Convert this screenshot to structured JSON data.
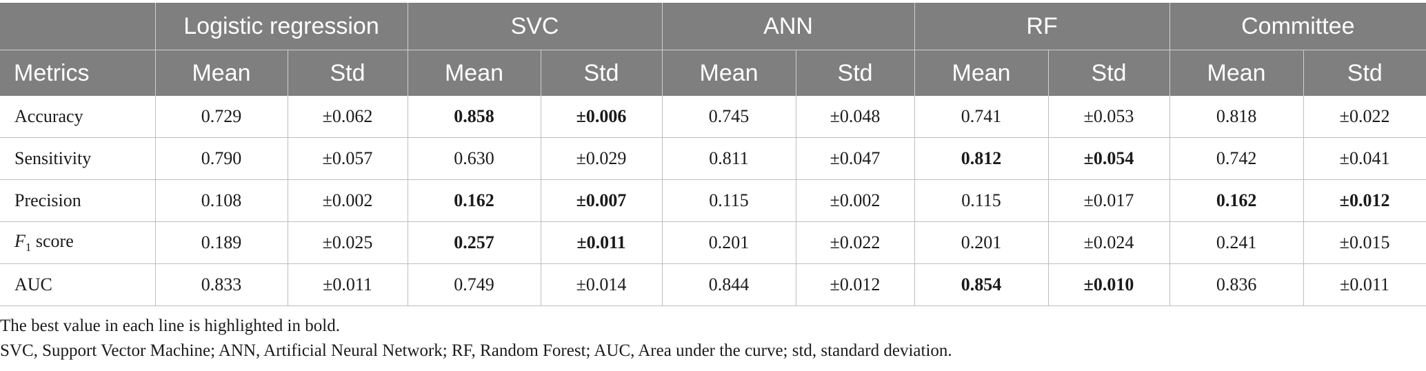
{
  "table": {
    "groups": [
      "Logistic regression",
      "SVC",
      "ANN",
      "RF",
      "Committee"
    ],
    "metrics_header": "Metrics",
    "mean_label": "Mean",
    "std_label": "Std",
    "rows": [
      {
        "label": "Accuracy",
        "cells": [
          {
            "v": "0.729",
            "bold": false
          },
          {
            "v": "±0.062",
            "bold": false
          },
          {
            "v": "0.858",
            "bold": true
          },
          {
            "v": "±0.006",
            "bold": true
          },
          {
            "v": "0.745",
            "bold": false
          },
          {
            "v": "±0.048",
            "bold": false
          },
          {
            "v": "0.741",
            "bold": false
          },
          {
            "v": "±0.053",
            "bold": false
          },
          {
            "v": "0.818",
            "bold": false
          },
          {
            "v": "±0.022",
            "bold": false
          }
        ]
      },
      {
        "label": "Sensitivity",
        "cells": [
          {
            "v": "0.790",
            "bold": false
          },
          {
            "v": "±0.057",
            "bold": false
          },
          {
            "v": "0.630",
            "bold": false
          },
          {
            "v": "±0.029",
            "bold": false
          },
          {
            "v": "0.811",
            "bold": false
          },
          {
            "v": "±0.047",
            "bold": false
          },
          {
            "v": "0.812",
            "bold": true
          },
          {
            "v": "±0.054",
            "bold": true
          },
          {
            "v": "0.742",
            "bold": false
          },
          {
            "v": "±0.041",
            "bold": false
          }
        ]
      },
      {
        "label": "Precision",
        "cells": [
          {
            "v": "0.108",
            "bold": false
          },
          {
            "v": "±0.002",
            "bold": false
          },
          {
            "v": "0.162",
            "bold": true
          },
          {
            "v": "±0.007",
            "bold": true
          },
          {
            "v": "0.115",
            "bold": false
          },
          {
            "v": "±0.002",
            "bold": false
          },
          {
            "v": "0.115",
            "bold": false
          },
          {
            "v": "±0.017",
            "bold": false
          },
          {
            "v": "0.162",
            "bold": true
          },
          {
            "v": "±0.012",
            "bold": true
          }
        ]
      },
      {
        "label": "F1 score",
        "label_main": "F",
        "label_sub": "1",
        "label_rest": " score",
        "cells": [
          {
            "v": "0.189",
            "bold": false
          },
          {
            "v": "±0.025",
            "bold": false
          },
          {
            "v": "0.257",
            "bold": true
          },
          {
            "v": "±0.011",
            "bold": true
          },
          {
            "v": "0.201",
            "bold": false
          },
          {
            "v": "±0.022",
            "bold": false
          },
          {
            "v": "0.201",
            "bold": false
          },
          {
            "v": "±0.024",
            "bold": false
          },
          {
            "v": "0.241",
            "bold": false
          },
          {
            "v": "±0.015",
            "bold": false
          }
        ]
      },
      {
        "label": "AUC",
        "cells": [
          {
            "v": "0.833",
            "bold": false
          },
          {
            "v": "±0.011",
            "bold": false
          },
          {
            "v": "0.749",
            "bold": false
          },
          {
            "v": "±0.014",
            "bold": false
          },
          {
            "v": "0.844",
            "bold": false
          },
          {
            "v": "±0.012",
            "bold": false
          },
          {
            "v": "0.854",
            "bold": true
          },
          {
            "v": "±0.010",
            "bold": true
          },
          {
            "v": "0.836",
            "bold": false
          },
          {
            "v": "±0.011",
            "bold": false
          }
        ]
      }
    ]
  },
  "notes": {
    "line1": "The best value in each line is highlighted in bold.",
    "line2": "SVC, Support Vector Machine; ANN, Artificial Neural Network; RF, Random Forest; AUC, Area under the curve; std, standard deviation."
  },
  "colors": {
    "header_bg": "#7f7f7f",
    "header_text": "#ffffff",
    "grid": "#bdbdbd"
  }
}
